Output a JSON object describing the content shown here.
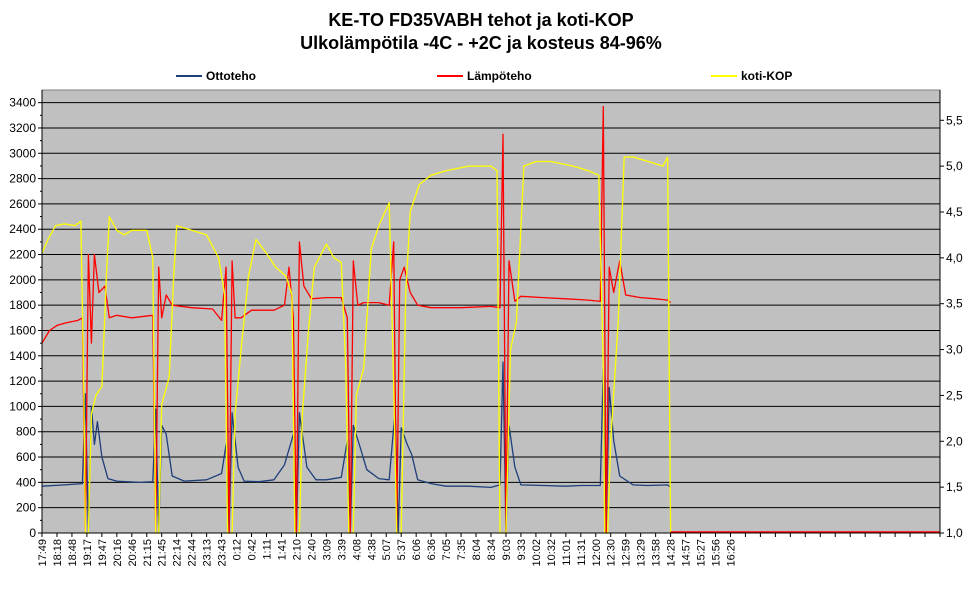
{
  "chart_data": {
    "type": "line",
    "title": [
      "KE-TO FD35VABH tehot ja koti-KOP",
      "Ulkolämpötila  -4C - +2C ja kosteus 84-96%"
    ],
    "xlabel": "",
    "ylabel": "",
    "ylim": [
      0,
      3500
    ],
    "y2lim": [
      1.0,
      5.83
    ],
    "grid": true,
    "legend_position": "top",
    "plot_background": "#c0c0c0",
    "y_ticks": [
      0,
      200,
      400,
      600,
      800,
      1000,
      1200,
      1400,
      1600,
      1800,
      2000,
      2200,
      2400,
      2600,
      2800,
      3000,
      3200,
      3400
    ],
    "y_tick_labels": [
      "0",
      "200",
      "400",
      "600",
      "800",
      "1000",
      "1200",
      "1400",
      "1600",
      "1800",
      "2000",
      "2200",
      "2400",
      "2600",
      "2800",
      "3000",
      "3200",
      "3400"
    ],
    "y2_ticks": [
      1.0,
      1.5,
      2.0,
      2.5,
      3.0,
      3.5,
      4.0,
      4.5,
      5.0,
      5.5
    ],
    "y2_tick_labels": [
      "1,0",
      "1,5",
      "2,0",
      "2,5",
      "3,0",
      "3,5",
      "4,0",
      "4,5",
      "5,0",
      "5,5"
    ],
    "x_tick_labels": [
      "17:49",
      "18:18",
      "18:48",
      "19:17",
      "19:47",
      "20:16",
      "20:46",
      "21:15",
      "21:45",
      "22:14",
      "22:44",
      "23:13",
      "23:43",
      "0:12",
      "0:42",
      "1:11",
      "1:41",
      "2:10",
      "2:40",
      "3:09",
      "3:39",
      "4:08",
      "4:38",
      "5:07",
      "5:37",
      "6:06",
      "6:36",
      "7:05",
      "7:35",
      "8:04",
      "8:34",
      "9:03",
      "9:33",
      "10:02",
      "10:32",
      "11:01",
      "11:31",
      "12:00",
      "12:30",
      "12:59",
      "13:29",
      "13:58",
      "14:28",
      "14:57",
      "15:27",
      "15:56",
      "16:26"
    ],
    "x_tick_total": 60,
    "x_end": 49.5,
    "data_end": 42.0,
    "series": [
      {
        "name": "Ottoteho",
        "axis": "left",
        "color": "#1f3f7a",
        "points": [
          [
            0.0,
            370
          ],
          [
            1.5,
            380
          ],
          [
            2.7,
            390
          ],
          [
            2.9,
            1100
          ],
          [
            3.1,
            0
          ],
          [
            3.3,
            1000
          ],
          [
            3.5,
            700
          ],
          [
            3.7,
            880
          ],
          [
            4.0,
            600
          ],
          [
            4.4,
            430
          ],
          [
            5.0,
            410
          ],
          [
            6.5,
            400
          ],
          [
            7.4,
            405
          ],
          [
            7.6,
            980
          ],
          [
            7.8,
            0
          ],
          [
            8.0,
            850
          ],
          [
            8.3,
            780
          ],
          [
            8.7,
            450
          ],
          [
            9.5,
            410
          ],
          [
            11.0,
            420
          ],
          [
            12.0,
            470
          ],
          [
            12.3,
            700
          ],
          [
            12.5,
            0
          ],
          [
            12.7,
            950
          ],
          [
            13.1,
            520
          ],
          [
            13.5,
            410
          ],
          [
            14.5,
            405
          ],
          [
            15.5,
            420
          ],
          [
            16.2,
            540
          ],
          [
            16.8,
            780
          ],
          [
            17.0,
            0
          ],
          [
            17.2,
            950
          ],
          [
            17.7,
            520
          ],
          [
            18.3,
            420
          ],
          [
            19.0,
            420
          ],
          [
            20.0,
            440
          ],
          [
            20.4,
            730
          ],
          [
            20.6,
            0
          ],
          [
            20.8,
            850
          ],
          [
            21.2,
            700
          ],
          [
            21.7,
            500
          ],
          [
            22.5,
            430
          ],
          [
            23.2,
            420
          ],
          [
            23.6,
            980
          ],
          [
            23.8,
            0
          ],
          [
            24.0,
            830
          ],
          [
            24.4,
            700
          ],
          [
            24.7,
            620
          ],
          [
            25.1,
            420
          ],
          [
            26.0,
            390
          ],
          [
            27.0,
            370
          ],
          [
            28.5,
            370
          ],
          [
            30.0,
            360
          ],
          [
            30.6,
            380
          ],
          [
            30.8,
            1350
          ],
          [
            31.0,
            0
          ],
          [
            31.2,
            850
          ],
          [
            31.6,
            520
          ],
          [
            32.0,
            380
          ],
          [
            33.5,
            375
          ],
          [
            35.0,
            370
          ],
          [
            36.0,
            375
          ],
          [
            37.3,
            375
          ],
          [
            37.5,
            1300
          ],
          [
            37.7,
            0
          ],
          [
            37.9,
            1150
          ],
          [
            38.2,
            730
          ],
          [
            38.6,
            450
          ],
          [
            39.5,
            380
          ],
          [
            40.5,
            375
          ],
          [
            41.8,
            380
          ],
          [
            42.0,
            360
          ]
        ]
      },
      {
        "name": "Lämpöteho",
        "axis": "left",
        "color": "#ff0000",
        "points": [
          [
            0.0,
            1500
          ],
          [
            0.5,
            1600
          ],
          [
            1.0,
            1640
          ],
          [
            1.6,
            1660
          ],
          [
            2.4,
            1680
          ],
          [
            2.7,
            1700
          ],
          [
            2.9,
            0
          ],
          [
            3.1,
            2200
          ],
          [
            3.3,
            1500
          ],
          [
            3.5,
            2200
          ],
          [
            3.8,
            1900
          ],
          [
            4.2,
            1950
          ],
          [
            4.5,
            1700
          ],
          [
            5.0,
            1720
          ],
          [
            6.0,
            1700
          ],
          [
            7.4,
            1720
          ],
          [
            7.6,
            0
          ],
          [
            7.8,
            2100
          ],
          [
            8.0,
            1700
          ],
          [
            8.3,
            1880
          ],
          [
            8.7,
            1800
          ],
          [
            10.0,
            1780
          ],
          [
            11.4,
            1770
          ],
          [
            12.0,
            1680
          ],
          [
            12.3,
            2100
          ],
          [
            12.5,
            0
          ],
          [
            12.7,
            2150
          ],
          [
            12.9,
            1700
          ],
          [
            13.3,
            1700
          ],
          [
            14.0,
            1760
          ],
          [
            15.5,
            1760
          ],
          [
            16.2,
            1800
          ],
          [
            16.5,
            2100
          ],
          [
            16.8,
            1700
          ],
          [
            17.0,
            0
          ],
          [
            17.2,
            2300
          ],
          [
            17.5,
            1950
          ],
          [
            18.0,
            1850
          ],
          [
            19.0,
            1860
          ],
          [
            20.0,
            1860
          ],
          [
            20.4,
            1700
          ],
          [
            20.6,
            0
          ],
          [
            20.8,
            2150
          ],
          [
            21.1,
            1800
          ],
          [
            21.5,
            1820
          ],
          [
            22.5,
            1820
          ],
          [
            23.2,
            1800
          ],
          [
            23.5,
            2300
          ],
          [
            23.7,
            0
          ],
          [
            23.9,
            2000
          ],
          [
            24.2,
            2100
          ],
          [
            24.6,
            1900
          ],
          [
            25.1,
            1800
          ],
          [
            26.0,
            1780
          ],
          [
            28.0,
            1780
          ],
          [
            30.0,
            1790
          ],
          [
            30.6,
            1780
          ],
          [
            30.8,
            3150
          ],
          [
            31.0,
            0
          ],
          [
            31.2,
            2150
          ],
          [
            31.6,
            1830
          ],
          [
            32.0,
            1870
          ],
          [
            33.5,
            1860
          ],
          [
            35.0,
            1850
          ],
          [
            36.5,
            1840
          ],
          [
            37.3,
            1830
          ],
          [
            37.5,
            3370
          ],
          [
            37.7,
            0
          ],
          [
            37.9,
            2100
          ],
          [
            38.2,
            1900
          ],
          [
            38.6,
            2150
          ],
          [
            39.0,
            1880
          ],
          [
            40.0,
            1860
          ],
          [
            41.0,
            1850
          ],
          [
            41.8,
            1840
          ],
          [
            42.0,
            1820
          ]
        ]
      },
      {
        "name": "koti-KOP",
        "axis": "right",
        "color": "#ffff00",
        "points": [
          [
            0.0,
            4.05
          ],
          [
            0.4,
            4.2
          ],
          [
            0.9,
            4.35
          ],
          [
            1.5,
            4.37
          ],
          [
            2.2,
            4.35
          ],
          [
            2.6,
            4.4
          ],
          [
            2.8,
            2.5
          ],
          [
            2.9,
            1.0
          ],
          [
            3.1,
            1.0
          ],
          [
            3.3,
            2.3
          ],
          [
            3.6,
            2.5
          ],
          [
            4.0,
            2.6
          ],
          [
            4.3,
            3.8
          ],
          [
            4.5,
            4.45
          ],
          [
            5.0,
            4.3
          ],
          [
            5.5,
            4.25
          ],
          [
            6.0,
            4.3
          ],
          [
            7.0,
            4.3
          ],
          [
            7.4,
            4.0
          ],
          [
            7.6,
            1.0
          ],
          [
            7.8,
            1.0
          ],
          [
            8.0,
            2.4
          ],
          [
            8.5,
            2.7
          ],
          [
            8.8,
            3.8
          ],
          [
            9.0,
            4.35
          ],
          [
            10.0,
            4.3
          ],
          [
            11.0,
            4.25
          ],
          [
            11.8,
            4.0
          ],
          [
            12.2,
            3.6
          ],
          [
            12.4,
            1.0
          ],
          [
            12.7,
            1.0
          ],
          [
            12.9,
            2.3
          ],
          [
            13.3,
            3.0
          ],
          [
            13.8,
            3.8
          ],
          [
            14.3,
            4.2
          ],
          [
            15.0,
            4.05
          ],
          [
            15.6,
            3.9
          ],
          [
            16.3,
            3.8
          ],
          [
            16.7,
            3.6
          ],
          [
            16.9,
            1.0
          ],
          [
            17.2,
            1.0
          ],
          [
            17.4,
            2.3
          ],
          [
            17.8,
            3.2
          ],
          [
            18.2,
            3.9
          ],
          [
            19.0,
            4.15
          ],
          [
            19.5,
            4.0
          ],
          [
            20.0,
            3.95
          ],
          [
            20.3,
            2.8
          ],
          [
            20.5,
            1.0
          ],
          [
            20.8,
            1.0
          ],
          [
            21.0,
            2.5
          ],
          [
            21.5,
            2.8
          ],
          [
            22.0,
            4.1
          ],
          [
            22.5,
            4.35
          ],
          [
            23.2,
            4.6
          ],
          [
            23.5,
            2.6
          ],
          [
            23.7,
            1.0
          ],
          [
            24.0,
            1.0
          ],
          [
            24.3,
            3.6
          ],
          [
            24.6,
            4.5
          ],
          [
            25.2,
            4.8
          ],
          [
            26.0,
            4.9
          ],
          [
            27.0,
            4.95
          ],
          [
            28.5,
            5.0
          ],
          [
            30.0,
            5.0
          ],
          [
            30.4,
            4.95
          ],
          [
            30.6,
            1.0
          ],
          [
            31.0,
            1.0
          ],
          [
            31.3,
            3.0
          ],
          [
            31.7,
            3.3
          ],
          [
            32.2,
            5.0
          ],
          [
            33.0,
            5.05
          ],
          [
            34.0,
            5.05
          ],
          [
            35.5,
            5.0
          ],
          [
            36.5,
            4.95
          ],
          [
            37.2,
            4.9
          ],
          [
            37.5,
            2.8
          ],
          [
            37.6,
            1.0
          ],
          [
            37.8,
            1.0
          ],
          [
            38.0,
            2.0
          ],
          [
            38.5,
            3.3
          ],
          [
            38.9,
            5.1
          ],
          [
            39.5,
            5.1
          ],
          [
            40.5,
            5.05
          ],
          [
            41.5,
            5.0
          ],
          [
            41.8,
            5.1
          ],
          [
            42.0,
            1.0
          ]
        ]
      }
    ]
  }
}
